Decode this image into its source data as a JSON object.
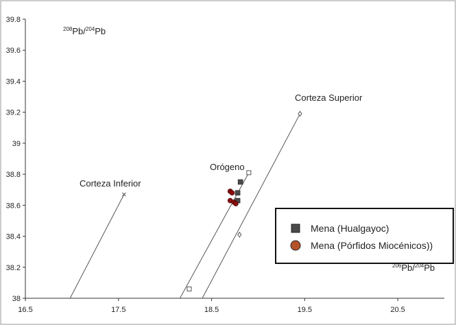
{
  "chart_data": {
    "type": "scatter",
    "xlabel": {
      "sup1": "206",
      "base1": "Pb/",
      "sup2": "204",
      "base2": "Pb"
    },
    "ylabel": {
      "sup1": "208",
      "base1": "Pb/",
      "sup2": "204",
      "base2": "Pb"
    },
    "xlim": [
      16.5,
      21.0
    ],
    "ylim": [
      38.0,
      39.8
    ],
    "x_ticks": [
      16.5,
      17.5,
      18.5,
      19.5,
      20.5
    ],
    "x_tick_labels": [
      "16.5",
      "17.5",
      "18.5",
      "19.5",
      "20.5"
    ],
    "y_ticks": [
      38.0,
      38.2,
      38.4,
      38.6,
      38.8,
      39.0,
      39.2,
      39.4,
      39.6,
      39.8
    ],
    "y_tick_labels": [
      "38",
      "38.2",
      "38.4",
      "38.6",
      "38.8",
      "39",
      "39.2",
      "39.4",
      "39.6",
      "39.8"
    ],
    "grid": false,
    "legend_position": "right",
    "reference_curves": [
      {
        "label": "Corteza Inferior",
        "marker": "x",
        "start": [
          16.98,
          38.0
        ],
        "end": [
          17.56,
          38.67
        ]
      },
      {
        "label": "Orógeno",
        "marker": "square",
        "start": [
          18.16,
          38.0
        ],
        "end": [
          18.9,
          38.81
        ],
        "points": [
          [
            18.26,
            38.06
          ],
          [
            18.9,
            38.81
          ]
        ]
      },
      {
        "label": "Corteza Superior",
        "marker": "diamond",
        "start": [
          18.4,
          38.0
        ],
        "end": [
          19.45,
          39.19
        ],
        "points": [
          [
            18.8,
            38.41
          ],
          [
            19.45,
            39.19
          ]
        ]
      }
    ],
    "series": [
      {
        "name": "Mena (Hualgayoc)",
        "marker": "square",
        "color": "#4a4a4a",
        "x": [
          18.81,
          18.78,
          18.78
        ],
        "y": [
          38.75,
          38.68,
          38.63
        ]
      },
      {
        "name": "Mena (Pórfidos Miocénicos))",
        "marker": "circle",
        "color": "#8b0f0f",
        "x": [
          18.7,
          18.72,
          18.7,
          18.74,
          18.76
        ],
        "y": [
          38.69,
          38.68,
          38.63,
          38.62,
          38.61
        ]
      }
    ]
  }
}
